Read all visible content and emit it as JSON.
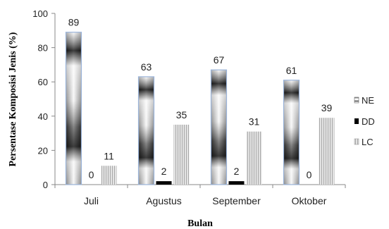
{
  "chart_data": {
    "type": "bar",
    "categories": [
      "Juli",
      "Agustus",
      "September",
      "Oktober"
    ],
    "series": [
      {
        "name": "NE",
        "values": [
          89,
          63,
          67,
          61
        ]
      },
      {
        "name": "DD",
        "values": [
          0,
          2,
          2,
          0
        ]
      },
      {
        "name": "LC",
        "values": [
          11,
          35,
          31,
          39
        ]
      }
    ],
    "title": "",
    "xlabel": "Bulan",
    "ylabel": "Persentase Komposisi Jenis (%)",
    "ylim": [
      0,
      100
    ],
    "yticks": [
      0,
      20,
      40,
      60,
      80,
      100
    ],
    "grid": false,
    "legend_position": "right"
  }
}
